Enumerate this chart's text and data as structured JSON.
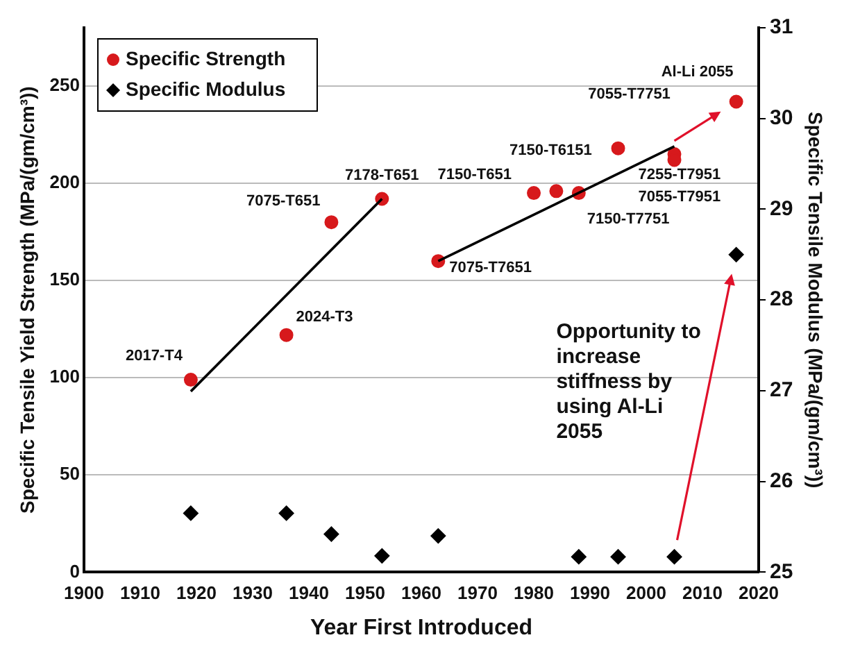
{
  "chart_data": {
    "type": "scatter",
    "xlabel": "Year First Introduced",
    "ylabel": "Specific Tensile Yield Strength (MPa/(gm/cm³))",
    "y2label": "Specific Tensile Modulus (MPa/(gm/cm³))",
    "xlim": [
      1900,
      2020
    ],
    "xticks": [
      1900,
      1910,
      1920,
      1930,
      1940,
      1950,
      1960,
      1970,
      1980,
      1990,
      2000,
      2010,
      2020
    ],
    "ylim": [
      0,
      280
    ],
    "yticks": [
      0,
      50,
      100,
      150,
      200,
      250
    ],
    "y2lim": [
      25,
      31
    ],
    "y2ticks": [
      25,
      26,
      27,
      28,
      29,
      30,
      31
    ],
    "grid": "y",
    "legend": "top left",
    "series": [
      {
        "name": "Specific Strength",
        "type": "scatter",
        "marker": "circle",
        "color": "#d7191c",
        "x": [
          1919,
          1936,
          1944,
          1953,
          1963,
          1980,
          1984,
          1988,
          1995,
          2005,
          2005,
          2016
        ],
        "values": [
          99,
          122,
          180,
          192,
          160,
          195,
          196,
          195,
          218,
          215,
          212,
          242
        ]
      },
      {
        "name": "Specific Modulus",
        "type": "scatter",
        "marker": "diamond",
        "axis": "y2",
        "color": "#000000",
        "x": [
          1919,
          1936,
          1944,
          1953,
          1963,
          1988,
          1995,
          2005,
          2016
        ],
        "values": [
          25.65,
          25.65,
          25.42,
          25.18,
          25.4,
          25.17,
          25.17,
          25.17,
          28.5
        ]
      },
      {
        "type": "line",
        "color": "#000000",
        "x": [
          1919,
          1953
        ],
        "values": [
          93,
          192
        ]
      },
      {
        "type": "line",
        "color": "#000000",
        "x": [
          1963,
          2005
        ],
        "values": [
          160,
          219
        ]
      }
    ],
    "annotations": [
      {
        "text": "2017-T4",
        "x": 1919,
        "y": 99
      },
      {
        "text": "2024-T3",
        "x": 1936,
        "y": 122
      },
      {
        "text": "7075-T651",
        "x": 1944,
        "y": 180
      },
      {
        "text": "7178-T651",
        "x": 1953,
        "y": 192
      },
      {
        "text": "7150-T651",
        "x": 1980,
        "y": 195
      },
      {
        "text": "7075-T7651",
        "x": 1963,
        "y": 160
      },
      {
        "text": "7150-T6151",
        "x": 1984,
        "y": 196
      },
      {
        "text": "7150-T7751",
        "x": 1988,
        "y": 195
      },
      {
        "text": "7055-T7751",
        "x": 1995,
        "y": 218
      },
      {
        "text": "7255-T7951",
        "x": 2005,
        "y": 215
      },
      {
        "text": "7055-T7951",
        "x": 2005,
        "y": 212
      },
      {
        "text": "Al-Li 2055",
        "x": 2016,
        "y": 242
      },
      "Opportunity to increase stiffness by using Al-Li 2055"
    ]
  }
}
